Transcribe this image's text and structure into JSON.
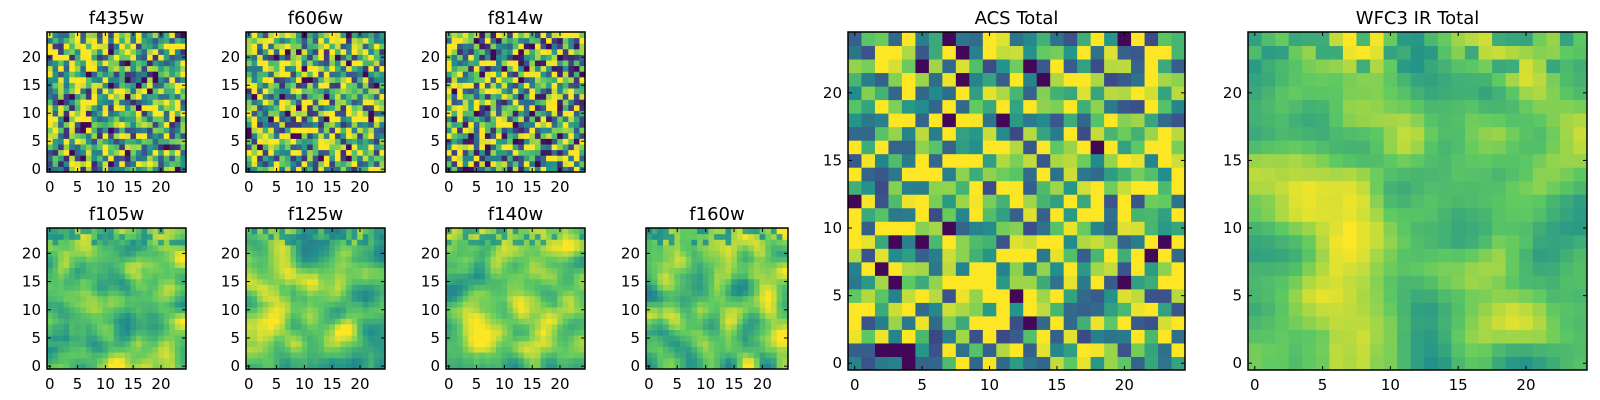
{
  "figure": {
    "colormap": [
      "#440154",
      "#3b528b",
      "#21918c",
      "#5ec962",
      "#fde725"
    ],
    "tick_values": [
      0,
      5,
      10,
      15,
      20
    ],
    "tick_labels": [
      "0",
      "5",
      "10",
      "15",
      "20"
    ]
  },
  "chart_data": [
    {
      "type": "heatmap",
      "title": "f435w",
      "grid": [
        25,
        25
      ],
      "xlim": [
        0,
        25
      ],
      "ylim": [
        0,
        25
      ],
      "texture": "noise",
      "seed": 11,
      "mean": 0.62,
      "spread": 0.55
    },
    {
      "type": "heatmap",
      "title": "f606w",
      "grid": [
        25,
        25
      ],
      "xlim": [
        0,
        25
      ],
      "ylim": [
        0,
        25
      ],
      "texture": "noise",
      "seed": 23,
      "mean": 0.66,
      "spread": 0.55
    },
    {
      "type": "heatmap",
      "title": "f814w",
      "grid": [
        25,
        25
      ],
      "xlim": [
        0,
        25
      ],
      "ylim": [
        0,
        25
      ],
      "texture": "noise",
      "seed": 37,
      "mean": 0.6,
      "spread": 0.6
    },
    {
      "type": "heatmap",
      "title": "f105w",
      "grid": [
        25,
        25
      ],
      "xlim": [
        0,
        25
      ],
      "ylim": [
        0,
        25
      ],
      "texture": "smooth",
      "seed": 41,
      "mean": 0.76,
      "spread": 0.3
    },
    {
      "type": "heatmap",
      "title": "f125w",
      "grid": [
        25,
        25
      ],
      "xlim": [
        0,
        25
      ],
      "ylim": [
        0,
        25
      ],
      "texture": "smooth",
      "seed": 53,
      "mean": 0.74,
      "spread": 0.32
    },
    {
      "type": "heatmap",
      "title": "f140w",
      "grid": [
        25,
        25
      ],
      "xlim": [
        0,
        25
      ],
      "ylim": [
        0,
        25
      ],
      "texture": "smooth",
      "seed": 67,
      "mean": 0.76,
      "spread": 0.3
    },
    {
      "type": "heatmap",
      "title": "f160w",
      "grid": [
        25,
        25
      ],
      "xlim": [
        0,
        25
      ],
      "ylim": [
        0,
        25
      ],
      "texture": "smooth",
      "seed": 79,
      "mean": 0.74,
      "spread": 0.32
    },
    {
      "type": "heatmap",
      "title": "ACS Total",
      "grid": [
        25,
        25
      ],
      "xlim": [
        0,
        25
      ],
      "ylim": [
        0,
        25
      ],
      "texture": "noise",
      "seed": 97,
      "mean": 0.68,
      "spread": 0.5
    },
    {
      "type": "heatmap",
      "title": "WFC3 IR Total",
      "grid": [
        25,
        25
      ],
      "xlim": [
        0,
        25
      ],
      "ylim": [
        0,
        25
      ],
      "texture": "smooth",
      "seed": 101,
      "mean": 0.78,
      "spread": 0.28
    }
  ]
}
